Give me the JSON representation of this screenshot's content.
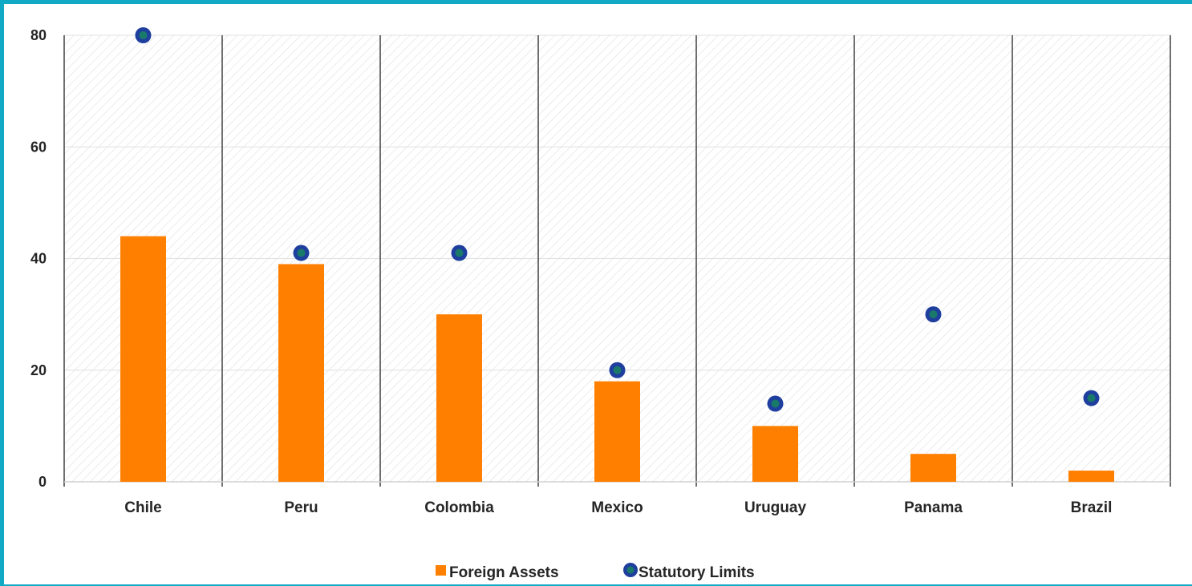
{
  "chart_data": {
    "type": "bar",
    "categories": [
      "Chile",
      "Peru",
      "Colombia",
      "Mexico",
      "Uruguay",
      "Panama",
      "Brazil"
    ],
    "series": [
      {
        "name": "Foreign Assets",
        "kind": "bar",
        "values": [
          44,
          39,
          30,
          18,
          10,
          5,
          2
        ],
        "color": "#ff7f00"
      },
      {
        "name": "Statutory Limits",
        "kind": "scatter",
        "values": [
          80,
          41,
          41,
          20,
          14,
          30,
          15
        ],
        "color": "#1f3f9f",
        "inner_color": "#1a7a6a"
      }
    ],
    "ylim": [
      0,
      80
    ],
    "yticks": [
      "0",
      "20",
      "40",
      "60",
      "80"
    ],
    "title": "",
    "xlabel": "",
    "ylabel": "",
    "legend_position": "bottom",
    "grid": true,
    "colors": {
      "frame": "#12a9c4",
      "separator": "#404040",
      "gridline": "#e0e0e0"
    }
  }
}
